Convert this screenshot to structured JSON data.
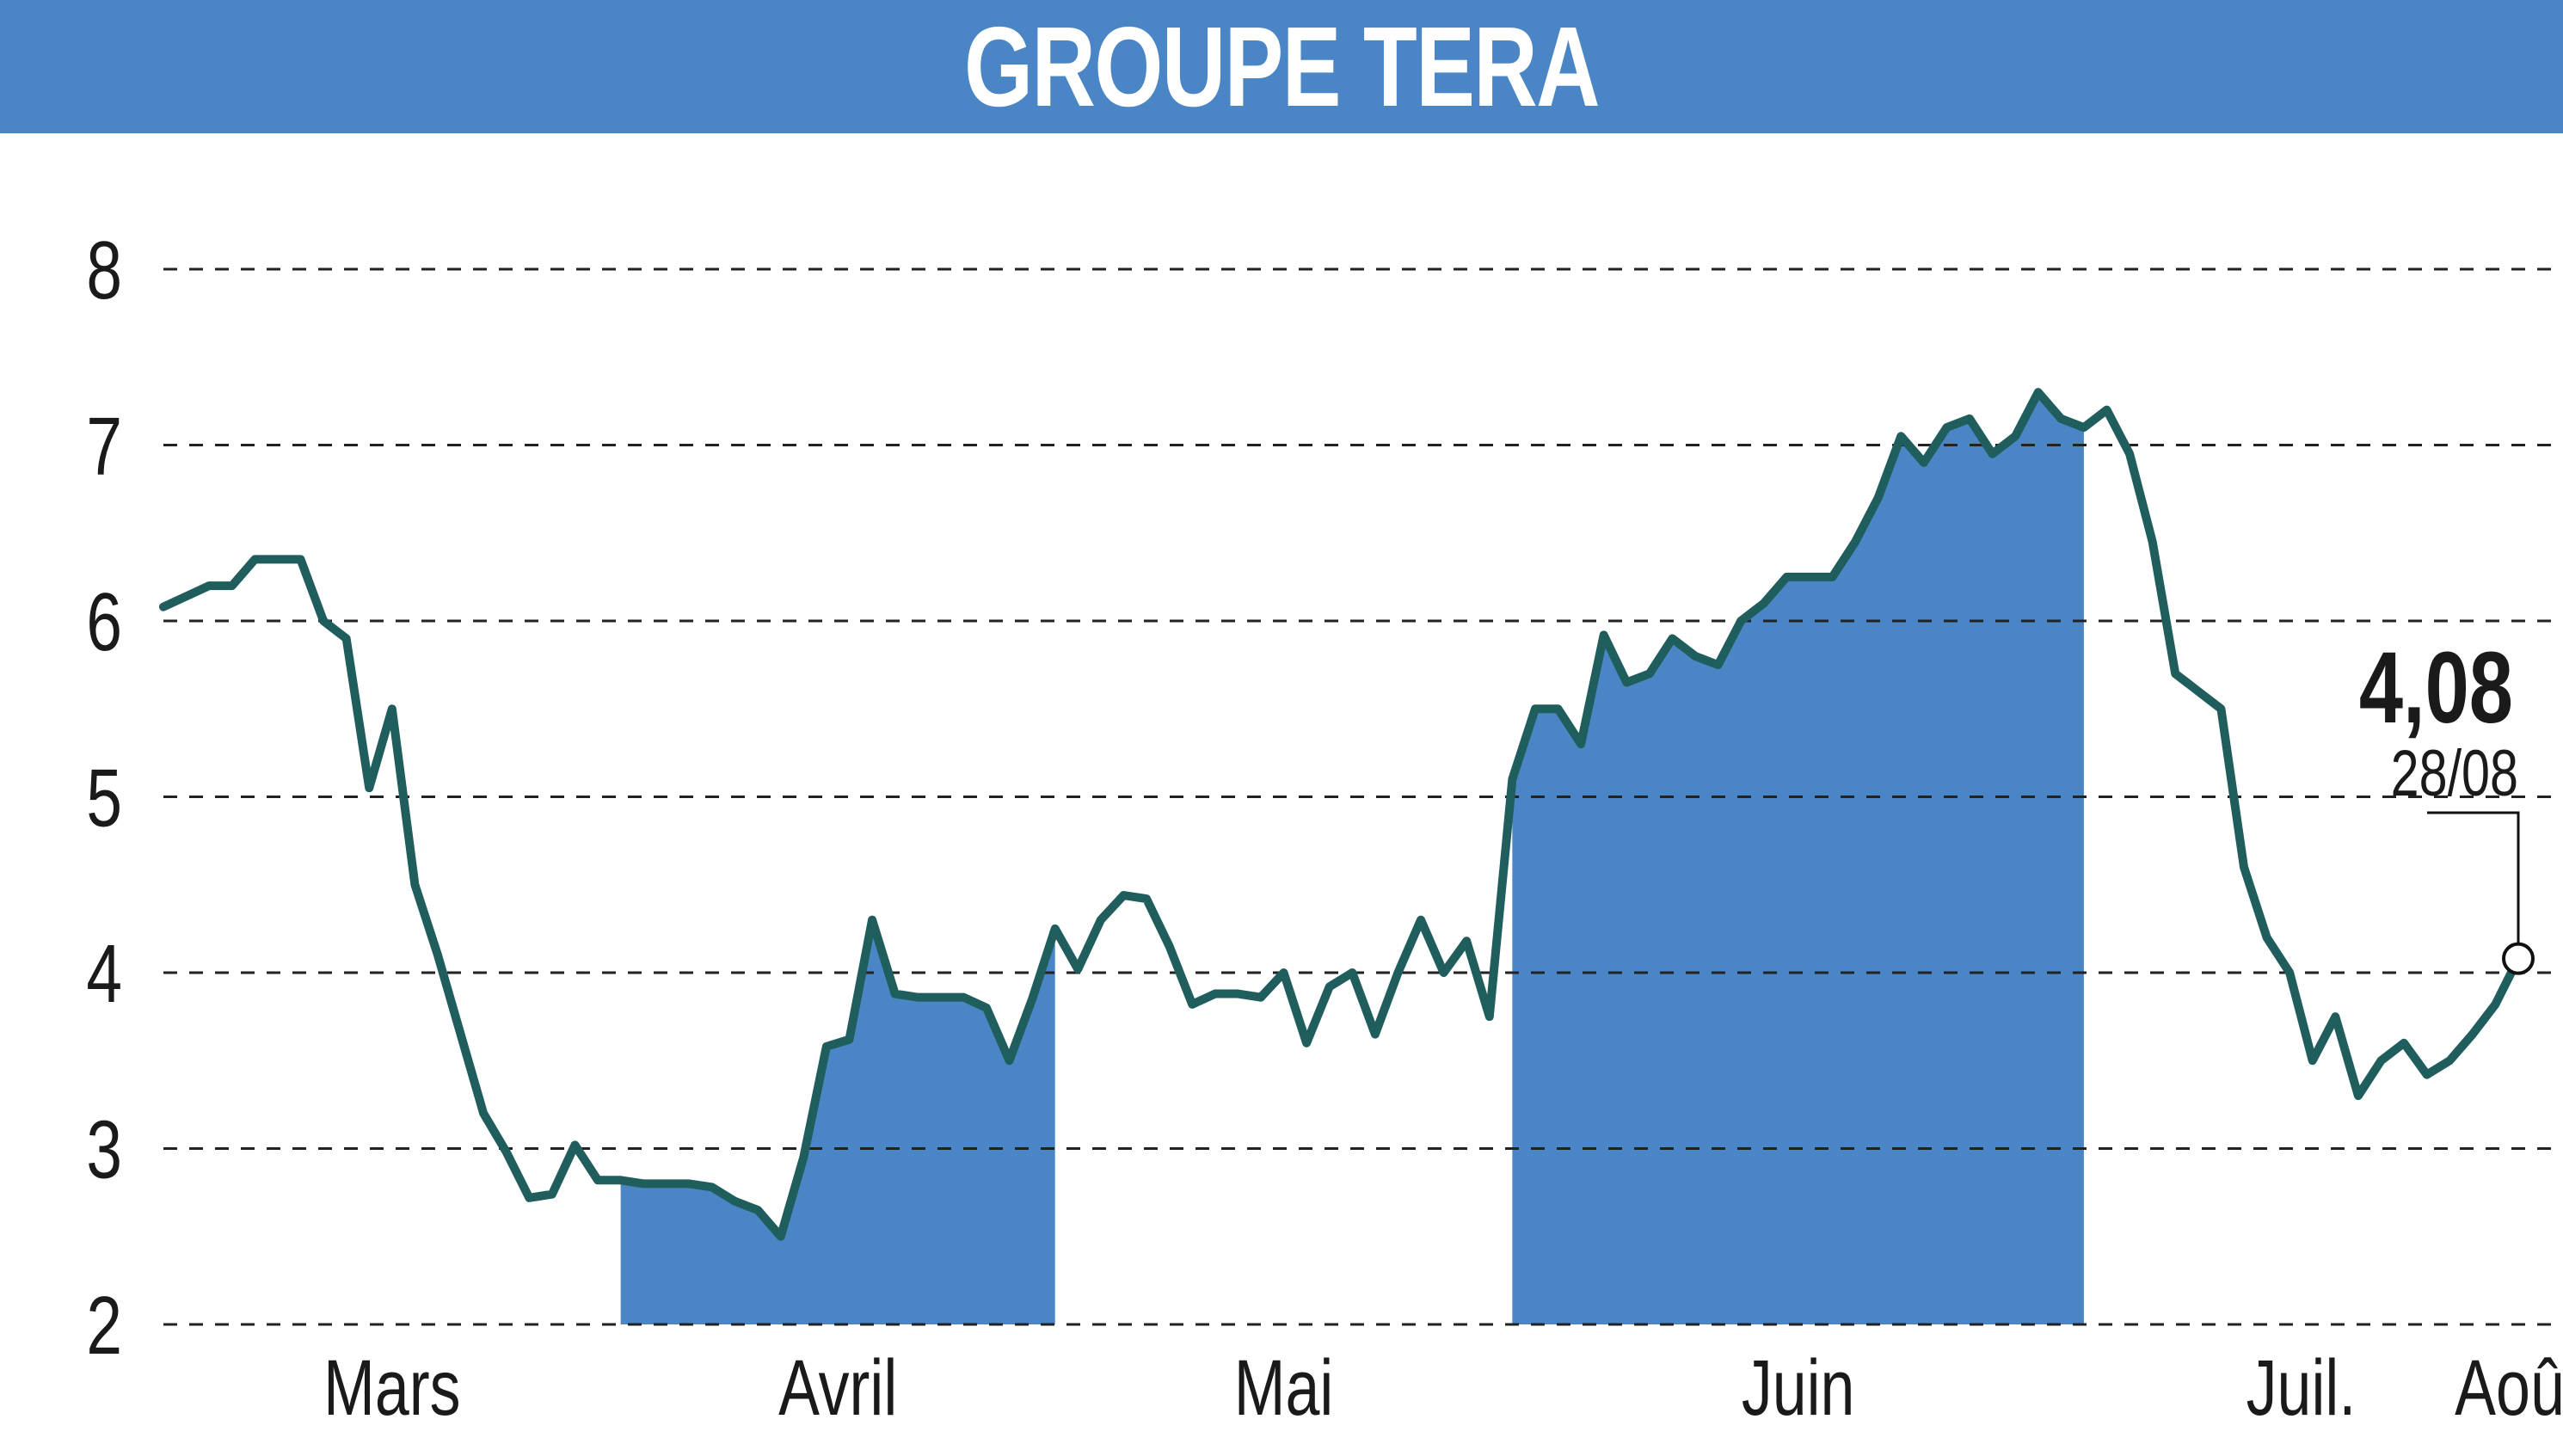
{
  "title": "GROUPE TERA",
  "colors": {
    "header": "#4a86c5",
    "fill": "#4a86c5",
    "line": "#1f5e5c",
    "grid": "#222222",
    "text": "#1a1a1a"
  },
  "chart_data": {
    "type": "line",
    "title": "GROUPE TERA",
    "xlabel": "",
    "ylabel": "",
    "ylim": [
      2,
      8
    ],
    "yticks": [
      "2",
      "3",
      "4",
      "5",
      "6",
      "7",
      "8"
    ],
    "x_labels": [
      "Mars",
      "Avril",
      "Mai",
      "Juin",
      "Juil.",
      "Août"
    ],
    "grid": "horizontal dashed",
    "shaded_months": [
      "Avril",
      "Juin",
      "Août"
    ],
    "last_value_label": "4,08",
    "last_date_label": "28/08",
    "series": [
      {
        "values": [
          6.08,
          6.14,
          6.2,
          6.2,
          6.35,
          6.35,
          6.35,
          6.0,
          5.9,
          5.05,
          5.5,
          4.5,
          4.1,
          3.65,
          3.2,
          2.98,
          2.72,
          2.74,
          3.02,
          2.82,
          2.82,
          2.8,
          2.8,
          2.8,
          2.78,
          2.7,
          2.65,
          2.5,
          2.95,
          3.58,
          3.62,
          4.3,
          3.88,
          3.86,
          3.86,
          3.86,
          3.8,
          3.5,
          3.85,
          4.25,
          4.02,
          4.3,
          4.44,
          4.42,
          4.15,
          3.82,
          3.88,
          3.88,
          3.86,
          4.0,
          3.6,
          3.92,
          4.0,
          3.65,
          4.0,
          4.3,
          4.0,
          4.18,
          3.75,
          5.1,
          5.5,
          5.5,
          5.3,
          5.92,
          5.65,
          5.7,
          5.9,
          5.8,
          5.75,
          6.0,
          6.1,
          6.25,
          6.25,
          6.25,
          6.45,
          6.7,
          7.05,
          6.9,
          7.1,
          7.15,
          6.95,
          7.05,
          7.3,
          7.15,
          7.1,
          7.2,
          6.95,
          6.45,
          5.7,
          5.6,
          5.5,
          4.6,
          4.2,
          4.0,
          3.5,
          3.75,
          3.3,
          3.5,
          3.6,
          3.42,
          3.5,
          3.65,
          3.82,
          4.08
        ]
      }
    ]
  }
}
